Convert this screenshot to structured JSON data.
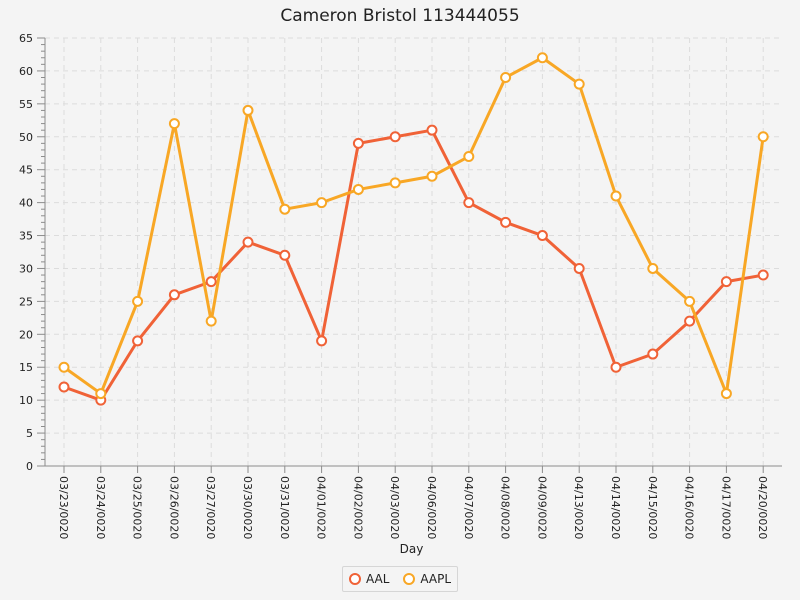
{
  "chart_data": {
    "type": "line",
    "title": "Cameron Bristol 113444055",
    "xlabel": "Day",
    "ylabel": "",
    "ylim": [
      0,
      65
    ],
    "y_ticks": [
      0,
      5,
      10,
      15,
      20,
      25,
      30,
      35,
      40,
      45,
      50,
      55,
      60,
      65
    ],
    "grid": true,
    "legend_position": "bottom-center",
    "categories": [
      "03/23/0020",
      "03/24/0020",
      "03/25/0020",
      "03/26/0020",
      "03/27/0020",
      "03/30/0020",
      "03/31/0020",
      "04/01/0020",
      "04/02/0020",
      "04/03/0020",
      "04/06/0020",
      "04/07/0020",
      "04/08/0020",
      "04/09/0020",
      "04/13/0020",
      "04/14/0020",
      "04/15/0020",
      "04/16/0020",
      "04/17/0020",
      "04/20/0020"
    ],
    "series": [
      {
        "name": "AAL",
        "color": "#f06237",
        "values": [
          12,
          10,
          19,
          26,
          28,
          34,
          32,
          19,
          49,
          50,
          51,
          40,
          37,
          35,
          30,
          15,
          17,
          22,
          28,
          29
        ]
      },
      {
        "name": "AAPL",
        "color": "#f8a725",
        "values": [
          15,
          11,
          25,
          52,
          22,
          54,
          39,
          40,
          42,
          43,
          44,
          47,
          59,
          62,
          58,
          41,
          30,
          25,
          11,
          50
        ]
      }
    ]
  }
}
